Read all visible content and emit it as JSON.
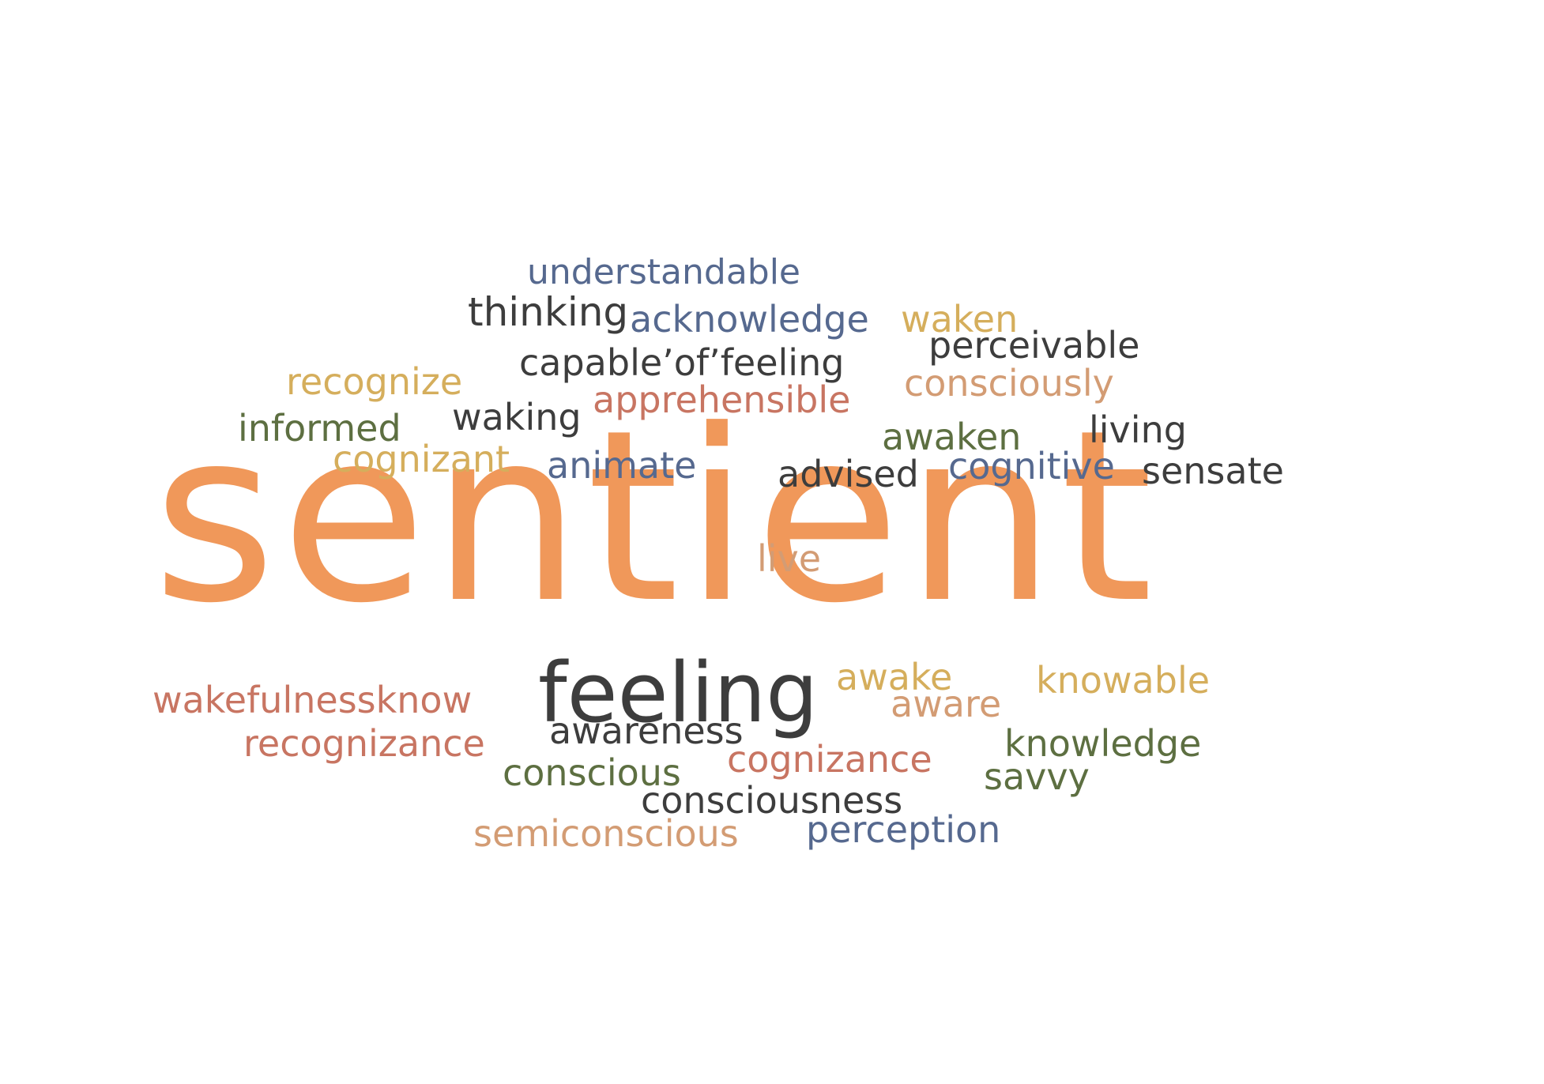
{
  "colors": {
    "orange": "#f0985a",
    "dark": "#3d3d3d",
    "blue": "#56698f",
    "gold": "#d5ae5c",
    "red": "#c87562",
    "green": "#5d6f41",
    "tan": "#d39c74",
    "background": "#ffffff"
  },
  "words": {
    "sentient": "sentient",
    "understandable": "understandable",
    "thinking": "thinking",
    "acknowledge": "acknowledge",
    "waken": "waken",
    "capable_of_feeling": "capable’of’feeling",
    "perceivable": "perceivable",
    "recognize": "recognize",
    "consciously": "consciously",
    "apprehensible": "apprehensible",
    "waking": "waking",
    "informed": "informed",
    "awaken": "awaken",
    "living": "living",
    "cognizant": "cognizant",
    "animate": "animate",
    "advised": "advised",
    "cognitive": "cognitive",
    "sensate": "sensate",
    "live": "live",
    "feeling": "feeling",
    "awake": "awake",
    "knowable": "knowable",
    "wakefulness": "wakefulness",
    "know": "know",
    "aware": "aware",
    "awareness": "awareness",
    "recognizance": "recognizance",
    "knowledge": "knowledge",
    "cognizance": "cognizance",
    "conscious": "conscious",
    "savvy": "savvy",
    "consciousness": "consciousness",
    "semiconscious": "semiconscious",
    "perception": "perception"
  }
}
